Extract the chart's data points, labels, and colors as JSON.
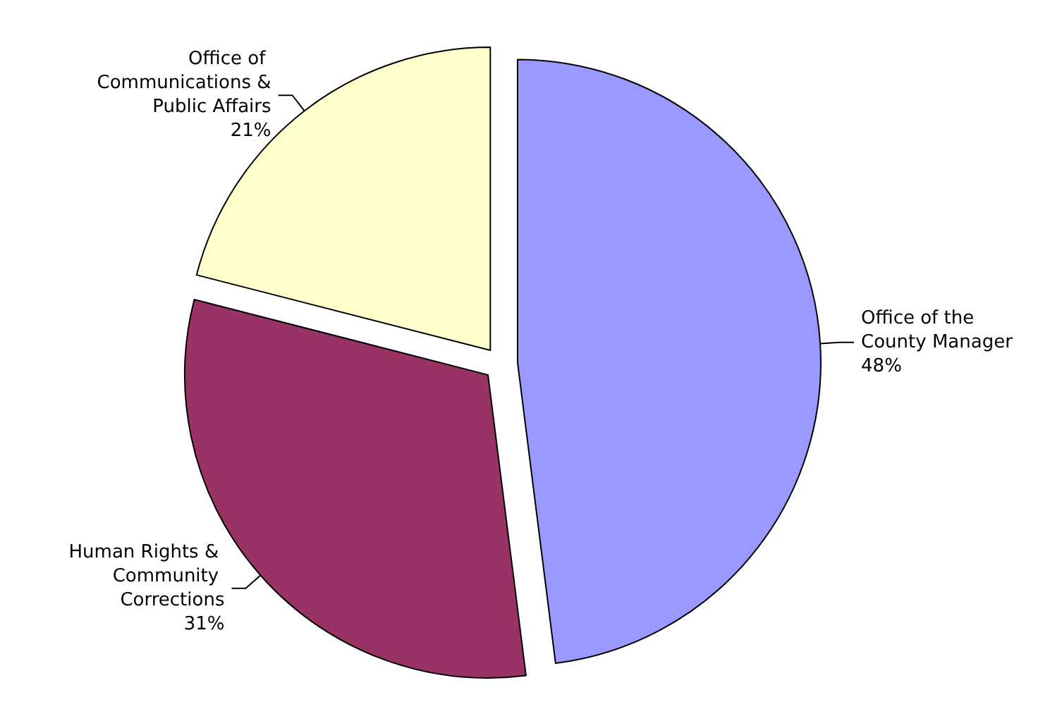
{
  "chart_data": {
    "type": "pie",
    "categories": [
      "Office of the County Manager",
      "Human Rights & Community Corrections",
      "Office of Communications & Public Affairs"
    ],
    "values": [
      48,
      31,
      21
    ],
    "colors": [
      "#9999ff",
      "#993366",
      "#ffffcc"
    ],
    "value_labels": [
      "48%",
      "31%",
      "21%"
    ],
    "legend": false
  }
}
